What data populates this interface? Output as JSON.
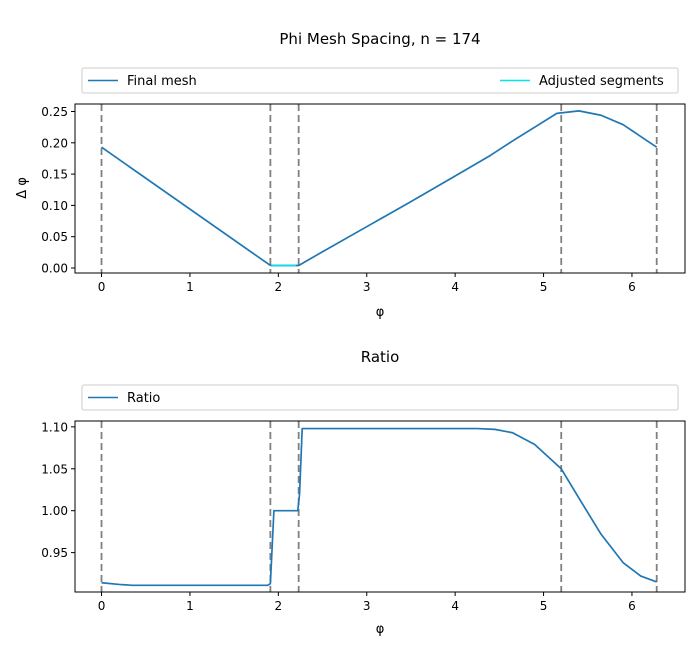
{
  "chart_data": [
    {
      "type": "line",
      "title": "Phi Mesh Spacing, n = 174",
      "xlabel": "φ",
      "ylabel": "Δ φ",
      "xlim": [
        -0.3,
        6.6
      ],
      "ylim": [
        -0.008,
        0.262
      ],
      "xticks": [
        0,
        1,
        2,
        3,
        4,
        5,
        6
      ],
      "xtick_labels": [
        "0",
        "1",
        "2",
        "3",
        "4",
        "5",
        "6"
      ],
      "yticks": [
        0.0,
        0.05,
        0.1,
        0.15,
        0.2,
        0.25
      ],
      "ytick_labels": [
        "0.00",
        "0.05",
        "0.10",
        "0.15",
        "0.20",
        "0.25"
      ],
      "grid": false,
      "legend_placement": "top, above axes",
      "vlines": [
        0.0,
        1.91,
        2.23,
        5.2,
        6.28
      ],
      "series": [
        {
          "name": "Final mesh",
          "color": "#1f77b4",
          "x": [
            0.0,
            1.9,
            1.92,
            2.2,
            2.23,
            2.5,
            3.0,
            3.5,
            4.0,
            4.4,
            4.65,
            4.9,
            5.15,
            5.4,
            5.65,
            5.9,
            6.1,
            6.28
          ],
          "y": [
            0.193,
            0.005,
            0.004,
            0.004,
            0.004,
            0.026,
            0.066,
            0.106,
            0.147,
            0.18,
            0.203,
            0.225,
            0.247,
            0.251,
            0.244,
            0.229,
            0.21,
            0.193
          ]
        },
        {
          "name": "Adjusted segments",
          "color": "#00e5ee",
          "x": [
            1.92,
            2.2
          ],
          "y": [
            0.004,
            0.004
          ]
        }
      ]
    },
    {
      "type": "line",
      "title": "Ratio",
      "xlabel": "φ",
      "ylabel": "",
      "xlim": [
        -0.3,
        6.6
      ],
      "ylim": [
        0.903,
        1.107
      ],
      "xticks": [
        0,
        1,
        2,
        3,
        4,
        5,
        6
      ],
      "xtick_labels": [
        "0",
        "1",
        "2",
        "3",
        "4",
        "5",
        "6"
      ],
      "yticks": [
        0.95,
        1.0,
        1.05,
        1.1
      ],
      "ytick_labels": [
        "0.95",
        "1.00",
        "1.05",
        "1.10"
      ],
      "grid": false,
      "legend_placement": "top, above axes",
      "vlines": [
        0.0,
        1.91,
        2.23,
        5.2,
        6.28
      ],
      "series": [
        {
          "name": "Ratio",
          "color": "#1f77b4",
          "x": [
            0.0,
            0.2,
            0.35,
            1.0,
            1.88,
            1.91,
            1.95,
            2.22,
            2.24,
            2.27,
            3.0,
            4.0,
            4.25,
            4.45,
            4.65,
            4.9,
            5.2,
            5.4,
            5.65,
            5.9,
            6.1,
            6.28
          ],
          "y": [
            0.914,
            0.912,
            0.911,
            0.911,
            0.911,
            0.913,
            1.0,
            1.0,
            1.02,
            1.098,
            1.098,
            1.098,
            1.098,
            1.097,
            1.093,
            1.079,
            1.05,
            1.015,
            0.972,
            0.938,
            0.922,
            0.915
          ]
        }
      ]
    }
  ]
}
